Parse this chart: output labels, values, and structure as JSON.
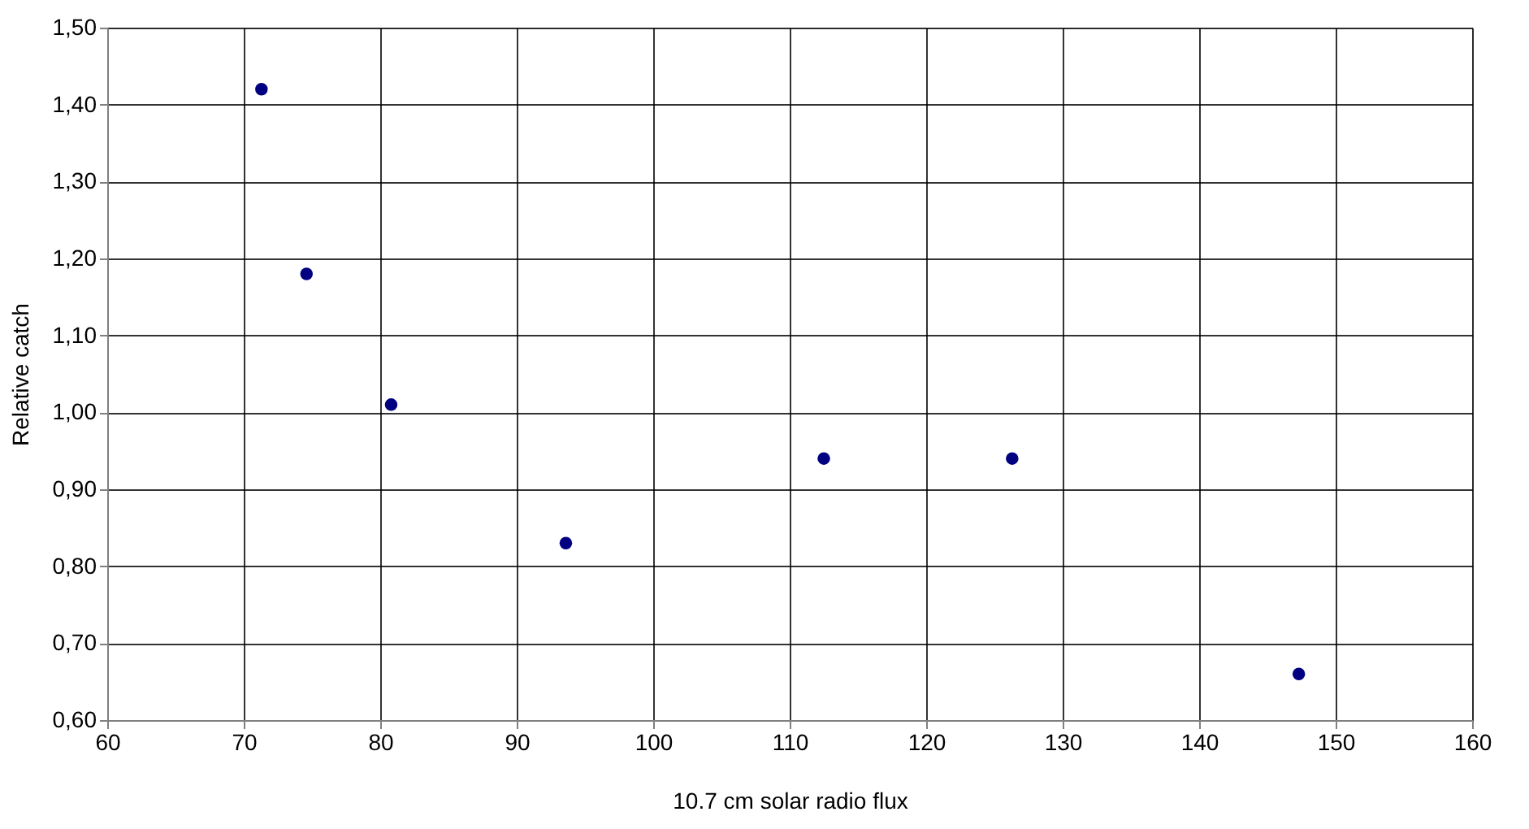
{
  "chart_data": {
    "type": "scatter",
    "xlabel": "10.7 cm solar radio flux",
    "ylabel": "Relative catch",
    "x": [
      71.3,
      74.6,
      80.8,
      93.6,
      112.5,
      126.3,
      147.3
    ],
    "series": [
      {
        "color": "#000080",
        "values": [
          1.42,
          1.18,
          1.01,
          0.83,
          0.94,
          0.94,
          0.66
        ]
      }
    ],
    "xlim": [
      60,
      160
    ],
    "xticks": [
      60,
      70,
      80,
      90,
      100,
      110,
      120,
      130,
      140,
      150,
      160
    ],
    "ylim": [
      0.6,
      1.5
    ],
    "yticks": [
      {
        "value": 0.6,
        "label": "0,60"
      },
      {
        "value": 0.7,
        "label": "0,70"
      },
      {
        "value": 0.8,
        "label": "0,80"
      },
      {
        "value": 0.9,
        "label": "0,90"
      },
      {
        "value": 1.0,
        "label": "1,00"
      },
      {
        "value": 1.1,
        "label": "1,10"
      },
      {
        "value": 1.2,
        "label": "1,20"
      },
      {
        "value": 1.3,
        "label": "1,30"
      },
      {
        "value": 1.4,
        "label": "1,40"
      },
      {
        "value": 1.5,
        "label": "1,50"
      }
    ],
    "grid": true,
    "marker": "circle"
  }
}
